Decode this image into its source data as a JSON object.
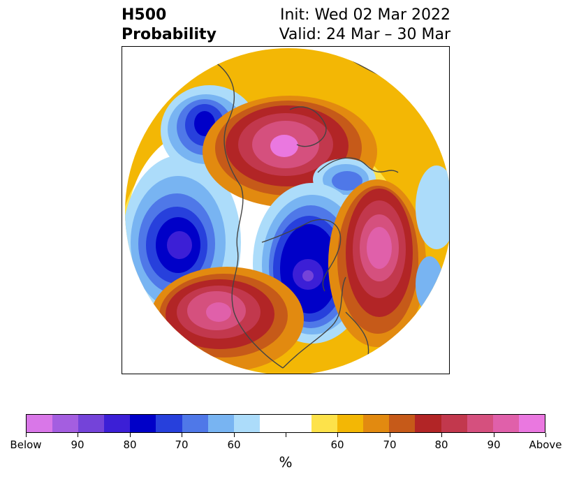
{
  "title": {
    "left_line1": "H500",
    "left_line2": "Probability",
    "right_line1": "Init: Wed 02 Mar 2022",
    "right_line2": "Valid: 24 Mar – 30 Mar"
  },
  "colorbar": {
    "colors": [
      "#d977e8",
      "#a45ee0",
      "#7443d9",
      "#3c1fd6",
      "#0000c8",
      "#2740dc",
      "#4f78e8",
      "#78b4f2",
      "#acdcfa",
      "#ffffff",
      "#ffffff",
      "#fde24a",
      "#f3b705",
      "#e28a10",
      "#c65a19",
      "#b22526",
      "#c2384d",
      "#d5507e",
      "#e060aa",
      "#ea78e0"
    ],
    "tick_labels": [
      "Below",
      "90",
      "80",
      "70",
      "60",
      "",
      "60",
      "70",
      "80",
      "90",
      "Above"
    ],
    "unit": "%"
  },
  "map": {
    "projection": "north-polar-stereographic",
    "variable": "500 hPa height anomaly probability",
    "anomaly_centers": [
      {
        "region": "Greenland / Arctic",
        "sign": "above",
        "max_percent": 90
      },
      {
        "region": "Western North America",
        "sign": "above",
        "max_percent": 90
      },
      {
        "region": "North Atlantic",
        "sign": "above",
        "max_percent": 90
      },
      {
        "region": "Central Siberia",
        "sign": "below",
        "max_percent": 90
      },
      {
        "region": "North Pacific",
        "sign": "below",
        "max_percent": 80
      },
      {
        "region": "Northern Europe",
        "sign": "below",
        "max_percent": 80
      },
      {
        "region": "Eastern Siberia",
        "sign": "below",
        "max_percent": 70
      }
    ]
  }
}
